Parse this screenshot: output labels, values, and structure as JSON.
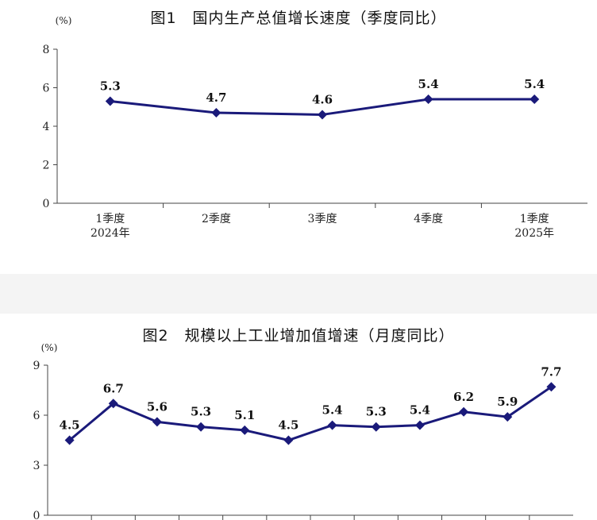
{
  "chart_data": [
    {
      "type": "line",
      "title": "图1　国内生产总值增长速度（季度同比）",
      "unit_label": "(%)",
      "categories": [
        [
          "1季度",
          "2024年"
        ],
        [
          "2季度"
        ],
        [
          "3季度"
        ],
        [
          "4季度"
        ],
        [
          "1季度",
          "2025年"
        ]
      ],
      "series": [
        {
          "values": [
            5.3,
            4.7,
            4.6,
            5.4,
            5.4
          ]
        }
      ],
      "yticks": [
        0,
        2,
        4,
        6,
        8
      ],
      "ylim": [
        0,
        8
      ],
      "grid": false,
      "line_color": "#1a1a7a"
    },
    {
      "type": "line",
      "title": "图2　规模以上工业增加值增速（月度同比）",
      "unit_label": "(%)",
      "series": [
        {
          "values": [
            4.5,
            6.7,
            5.6,
            5.3,
            5.1,
            4.5,
            5.4,
            5.3,
            5.4,
            6.2,
            5.9,
            7.7
          ]
        }
      ],
      "yticks": [
        0,
        3,
        6,
        9
      ],
      "ylim": [
        0,
        9
      ],
      "grid": false,
      "line_color": "#1a1a7a"
    }
  ]
}
